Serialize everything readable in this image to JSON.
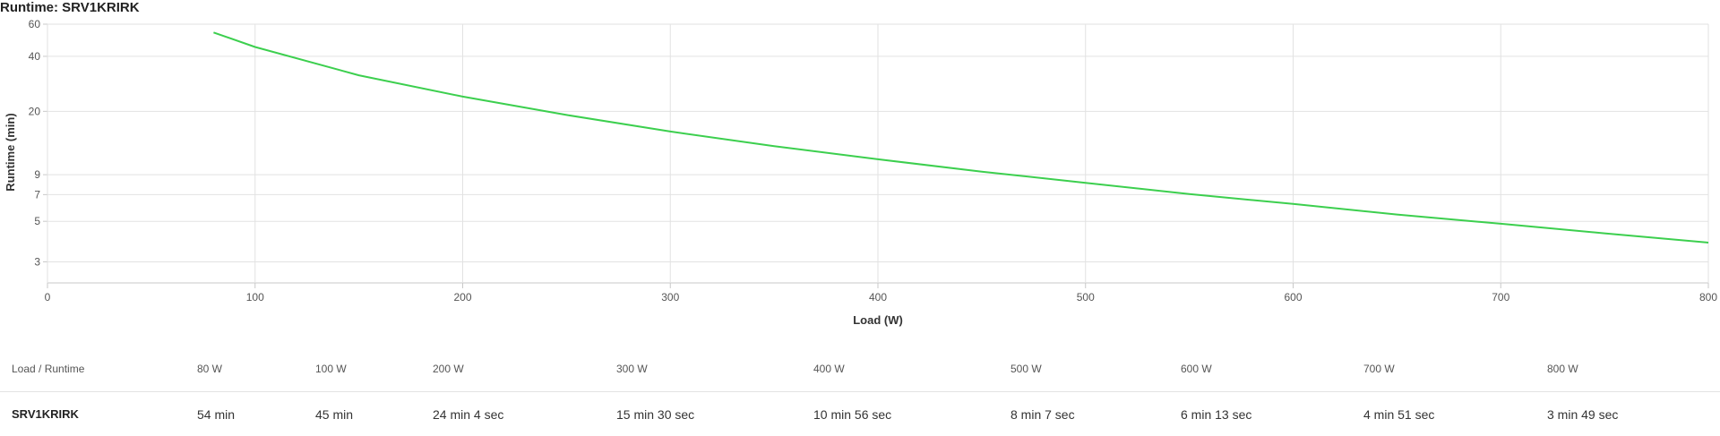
{
  "title": "Runtime: SRV1KRIRK",
  "chart_data": {
    "type": "line",
    "xlabel": "Load (W)",
    "ylabel": "Runtime (min)",
    "xlim": [
      0,
      800
    ],
    "ylim": [
      2.3,
      60
    ],
    "yscale": "log",
    "grid": true,
    "x_ticks": [
      0,
      100,
      200,
      300,
      400,
      500,
      600,
      700,
      800
    ],
    "y_ticks": [
      3,
      5,
      7,
      9,
      20,
      40,
      60
    ],
    "line_color": "#3ccf4e",
    "series": [
      {
        "x": [
          80,
          100,
          150,
          200,
          250,
          300,
          350,
          400,
          450,
          500,
          550,
          600,
          650,
          700,
          750,
          800
        ],
        "values": [
          54,
          45,
          31.5,
          24.07,
          19.1,
          15.5,
          12.9,
          10.93,
          9.35,
          8.12,
          7.05,
          6.22,
          5.45,
          4.85,
          4.3,
          3.82
        ]
      }
    ]
  },
  "table": {
    "header_label": "Load / Runtime",
    "loads": [
      "80 W",
      "100 W",
      "200 W",
      "300 W",
      "400 W",
      "500 W",
      "600 W",
      "700 W",
      "800 W"
    ],
    "row_name": "SRV1KRIRK",
    "runtimes": [
      "54 min",
      "45 min",
      "24 min 4 sec",
      "15 min 30 sec",
      "10 min 56 sec",
      "8 min 7 sec",
      "6 min 13 sec",
      "4 min 51 sec",
      "3 min 49 sec"
    ]
  }
}
